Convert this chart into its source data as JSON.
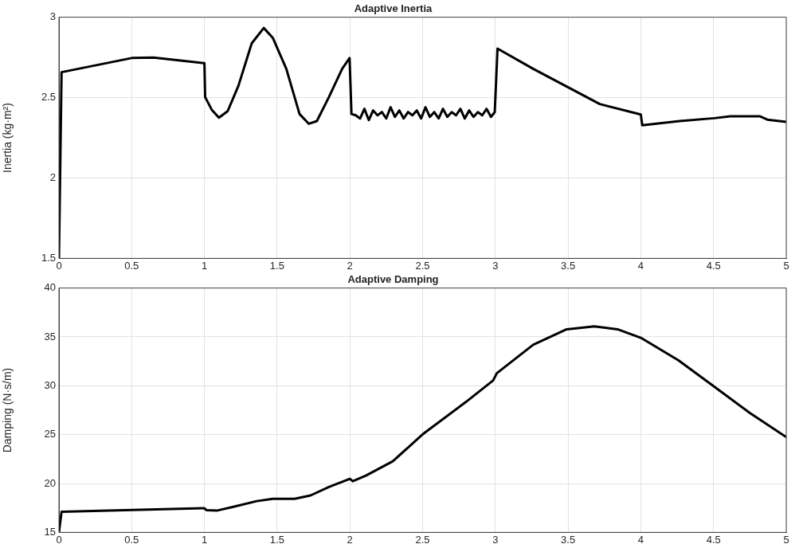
{
  "chart_data": [
    {
      "type": "line",
      "title": "Adaptive Inertia",
      "ylabel": "Inertia (kg·m²)",
      "color": "#000000",
      "marker": "none",
      "line_style": "solid",
      "grid": true,
      "legend": false,
      "xlim": [
        0,
        5
      ],
      "xticks": [
        0,
        0.5,
        1,
        1.5,
        2,
        2.5,
        3,
        3.5,
        4,
        4.5,
        5
      ],
      "ylim": [
        1.5,
        3
      ],
      "yticks": [
        1.5,
        2,
        2.5,
        3
      ],
      "x": [
        0,
        0.018,
        0.5,
        0.65,
        1.0,
        1.005,
        1.05,
        1.1,
        1.16,
        1.234,
        1.325,
        1.408,
        1.47,
        1.563,
        1.654,
        1.718,
        1.773,
        1.856,
        1.947,
        1.998,
        2.011,
        2.04,
        2.07,
        2.1,
        2.13,
        2.16,
        2.19,
        2.22,
        2.25,
        2.28,
        2.31,
        2.34,
        2.37,
        2.4,
        2.43,
        2.46,
        2.49,
        2.52,
        2.55,
        2.58,
        2.61,
        2.64,
        2.67,
        2.7,
        2.73,
        2.76,
        2.79,
        2.82,
        2.85,
        2.88,
        2.91,
        2.94,
        2.97,
        2.996,
        3.015,
        3.26,
        3.498,
        3.718,
        4.0,
        4.01,
        4.267,
        4.505,
        4.615,
        4.817,
        4.87,
        5.0
      ],
      "values": [
        1.5,
        2.658,
        2.746,
        2.749,
        2.714,
        2.503,
        2.425,
        2.375,
        2.416,
        2.574,
        2.837,
        2.933,
        2.872,
        2.679,
        2.398,
        2.337,
        2.354,
        2.503,
        2.679,
        2.746,
        2.398,
        2.39,
        2.37,
        2.43,
        2.36,
        2.42,
        2.39,
        2.41,
        2.37,
        2.44,
        2.38,
        2.42,
        2.37,
        2.41,
        2.39,
        2.42,
        2.37,
        2.44,
        2.38,
        2.41,
        2.37,
        2.43,
        2.38,
        2.41,
        2.39,
        2.43,
        2.37,
        2.42,
        2.38,
        2.41,
        2.39,
        2.43,
        2.38,
        2.41,
        2.805,
        2.679,
        2.565,
        2.46,
        2.395,
        2.328,
        2.354,
        2.372,
        2.384,
        2.384,
        2.363,
        2.349
      ]
    },
    {
      "type": "line",
      "title": "Adaptive Damping",
      "ylabel": "Damping (N·s/m)",
      "color": "#000000",
      "marker": "none",
      "line_style": "solid",
      "grid": true,
      "legend": false,
      "xlim": [
        0,
        5
      ],
      "xticks": [
        0,
        0.5,
        1,
        1.5,
        2,
        2.5,
        3,
        3.5,
        4,
        4.5,
        5
      ],
      "ylim": [
        15,
        40
      ],
      "yticks": [
        15,
        20,
        25,
        30,
        35,
        40
      ],
      "x": [
        0,
        0.018,
        1.0,
        1.015,
        1.09,
        1.2,
        1.36,
        1.47,
        1.62,
        1.73,
        1.856,
        2.0,
        2.02,
        2.11,
        2.295,
        2.5,
        2.8,
        2.985,
        3.01,
        3.26,
        3.49,
        3.68,
        3.84,
        4.0,
        4.26,
        4.5,
        4.75,
        5.0
      ],
      "values": [
        15,
        17.12,
        17.47,
        17.27,
        17.24,
        17.62,
        18.2,
        18.43,
        18.43,
        18.78,
        19.65,
        20.49,
        20.23,
        20.81,
        22.27,
        25.03,
        28.37,
        30.55,
        31.28,
        34.19,
        35.78,
        36.08,
        35.78,
        34.91,
        32.59,
        29.97,
        27.21,
        24.74
      ]
    }
  ]
}
